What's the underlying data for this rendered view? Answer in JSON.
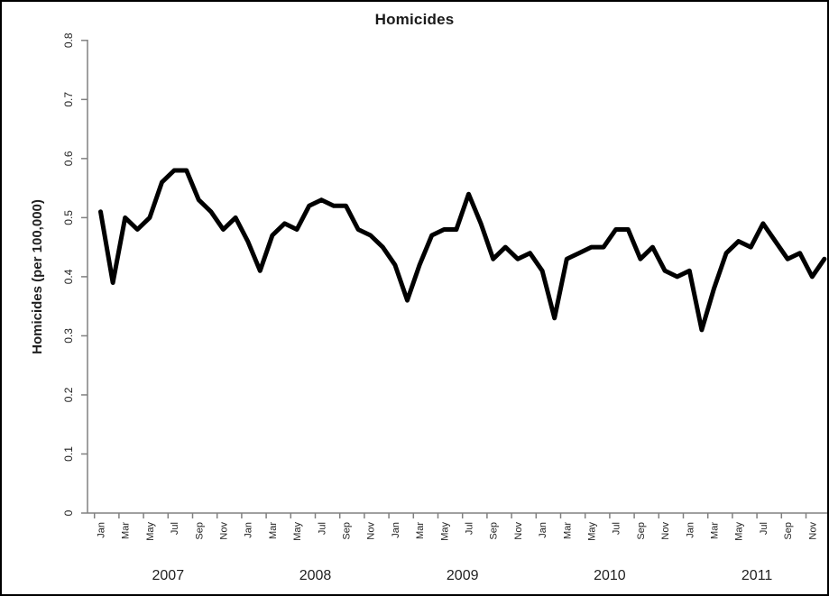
{
  "chart_data": {
    "type": "line",
    "title": "Homicides",
    "ylabel": "Homicides (per 100,000)",
    "xlabel": "",
    "ylim": [
      0,
      0.8
    ],
    "ytick_labels": [
      "0",
      "0.1",
      "0.2",
      "0.3",
      "0.4",
      "0.5",
      "0.6",
      "0.7",
      "0.8"
    ],
    "ytick_values": [
      0,
      0.1,
      0.2,
      0.3,
      0.4,
      0.5,
      0.6,
      0.7,
      0.8
    ],
    "grid": "off",
    "legend": "none",
    "line_color": "#000000",
    "line_width": 5,
    "background": "#ffffff",
    "frequency": "monthly",
    "x_start": "Jan 2007",
    "x_end": "Dec 2011",
    "years": [
      "2007",
      "2008",
      "2009",
      "2010",
      "2011"
    ],
    "month_tick_labels": [
      "Jan",
      "Mar",
      "May",
      "Jul",
      "Sep",
      "Nov"
    ],
    "series": [
      {
        "name": "Homicides (per 100,000)",
        "values": [
          0.51,
          0.39,
          0.5,
          0.48,
          0.5,
          0.56,
          0.58,
          0.58,
          0.53,
          0.51,
          0.48,
          0.5,
          0.46,
          0.41,
          0.47,
          0.49,
          0.48,
          0.52,
          0.53,
          0.52,
          0.52,
          0.48,
          0.47,
          0.45,
          0.42,
          0.36,
          0.42,
          0.47,
          0.48,
          0.48,
          0.54,
          0.49,
          0.43,
          0.45,
          0.43,
          0.44,
          0.41,
          0.33,
          0.43,
          0.44,
          0.45,
          0.45,
          0.48,
          0.48,
          0.43,
          0.45,
          0.41,
          0.4,
          0.41,
          0.31,
          0.38,
          0.44,
          0.46,
          0.45,
          0.49,
          0.46,
          0.43,
          0.44,
          0.4,
          0.43
        ]
      }
    ]
  }
}
